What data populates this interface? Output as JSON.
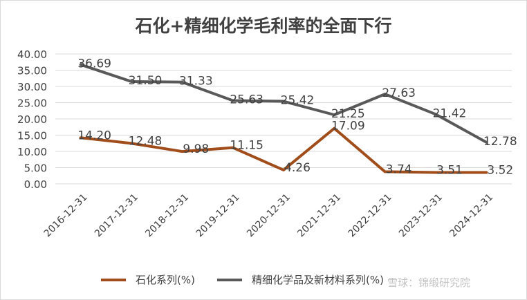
{
  "chart_data": {
    "type": "line",
    "title": "石化+精细化学毛利率的全面下行",
    "categories": [
      "2016-12-31",
      "2017-12-31",
      "2018-12-31",
      "2019-12-31",
      "2020-12-31",
      "2021-12-31",
      "2022-12-31",
      "2023-12-31",
      "2024-12-31"
    ],
    "ylim": [
      0,
      40
    ],
    "yticks": [
      "0.00",
      "5.00",
      "10.00",
      "15.00",
      "20.00",
      "25.00",
      "30.00",
      "35.00",
      "40.00"
    ],
    "grid": true,
    "legend_position": "bottom",
    "series": [
      {
        "name": "石化系列(%)",
        "color": "#a04d1b",
        "values": [
          14.2,
          12.48,
          9.98,
          11.15,
          4.26,
          17.09,
          3.74,
          3.51,
          3.52
        ],
        "labels": [
          "14.20",
          "12.48",
          "9.98",
          "11.15",
          "4.26",
          "17.09",
          "3.74",
          "3.51",
          "3.52"
        ]
      },
      {
        "name": "精细化学品及新材料系列(%)",
        "color": "#595959",
        "values": [
          36.69,
          31.5,
          31.33,
          25.63,
          25.42,
          21.25,
          27.63,
          21.42,
          12.78
        ],
        "labels": [
          "36.69",
          "31.50",
          "31.33",
          "25.63",
          "25.42",
          "21.25",
          "27.63",
          "21.42",
          "12.78"
        ]
      }
    ]
  },
  "watermark": "雪球：锦缎研究院"
}
